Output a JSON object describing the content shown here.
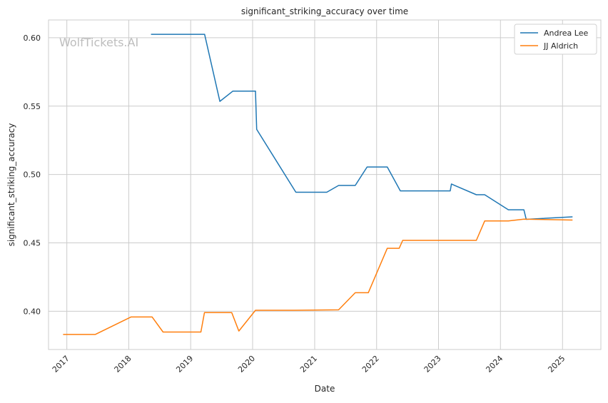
{
  "watermark": "WolfTickets.AI",
  "chart_data": {
    "type": "line",
    "title": "significant_striking_accuracy over time",
    "xlabel": "Date",
    "ylabel": "significant_striking_accuracy",
    "xlim": [
      "2016-09-15",
      "2025-08-15"
    ],
    "ylim": [
      0.372,
      0.613
    ],
    "x_ticks": [
      {
        "date": "2017-01-01",
        "label": "2017"
      },
      {
        "date": "2018-01-01",
        "label": "2018"
      },
      {
        "date": "2019-01-01",
        "label": "2019"
      },
      {
        "date": "2020-01-01",
        "label": "2020"
      },
      {
        "date": "2021-01-01",
        "label": "2021"
      },
      {
        "date": "2022-01-01",
        "label": "2022"
      },
      {
        "date": "2023-01-01",
        "label": "2023"
      },
      {
        "date": "2024-01-01",
        "label": "2024"
      },
      {
        "date": "2025-01-01",
        "label": "2025"
      }
    ],
    "y_ticks": [
      {
        "value": 0.4,
        "label": "0.40"
      },
      {
        "value": 0.45,
        "label": "0.45"
      },
      {
        "value": 0.5,
        "label": "0.50"
      },
      {
        "value": 0.55,
        "label": "0.55"
      },
      {
        "value": 0.6,
        "label": "0.60"
      }
    ],
    "grid": true,
    "legend_position": "top-right",
    "series": [
      {
        "name": "Andrea Lee",
        "color": "#1f77b4",
        "x": [
          "2018-05-12",
          "2019-03-24",
          "2019-06-22",
          "2019-09-07",
          "2020-01-18",
          "2020-01-25",
          "2020-09-12",
          "2021-03-13",
          "2021-05-22",
          "2021-08-28",
          "2021-11-06",
          "2022-03-05",
          "2022-05-21",
          "2023-03-11",
          "2023-03-18",
          "2023-08-12",
          "2023-09-30",
          "2024-02-17",
          "2024-05-18",
          "2024-06-01",
          "2025-03-01"
        ],
        "y": [
          0.6025,
          0.6025,
          0.5535,
          0.561,
          0.561,
          0.533,
          0.487,
          0.487,
          0.492,
          0.492,
          0.5055,
          0.5055,
          0.488,
          0.488,
          0.493,
          0.4852,
          0.4852,
          0.4742,
          0.4742,
          0.4672,
          0.469
        ]
      },
      {
        "name": "JJ Aldrich",
        "color": "#ff7f0e",
        "x": [
          "2016-12-10",
          "2017-06-17",
          "2018-01-14",
          "2018-05-19",
          "2018-07-22",
          "2019-03-02",
          "2019-03-23",
          "2019-08-31",
          "2019-10-12",
          "2020-01-18",
          "2020-09-05",
          "2021-05-22",
          "2021-08-28",
          "2021-11-13",
          "2022-03-05",
          "2022-05-14",
          "2022-06-04",
          "2023-08-12",
          "2023-09-30",
          "2024-02-17",
          "2024-05-18",
          "2025-03-01"
        ],
        "y": [
          0.383,
          0.383,
          0.3958,
          0.3958,
          0.3848,
          0.3848,
          0.399,
          0.399,
          0.3855,
          0.4007,
          0.4007,
          0.401,
          0.4135,
          0.4135,
          0.446,
          0.446,
          0.4518,
          0.4518,
          0.466,
          0.466,
          0.4673,
          0.4667
        ]
      }
    ]
  }
}
